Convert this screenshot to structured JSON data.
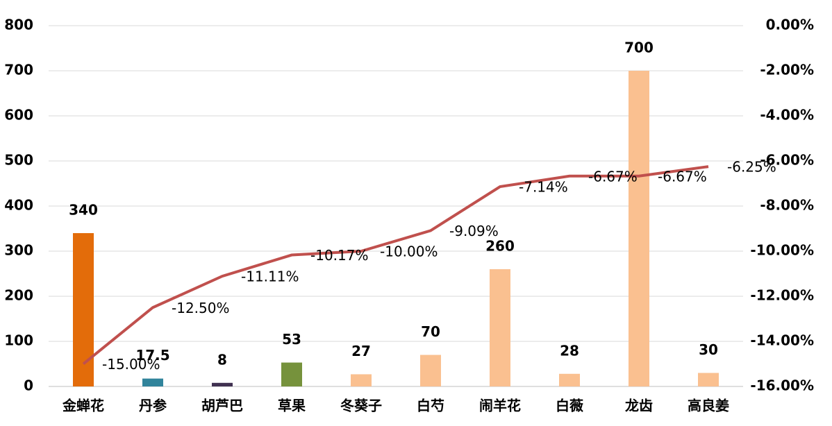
{
  "chart_data": {
    "type": "combo",
    "categories": [
      "金蝉花",
      "丹参",
      "胡芦巴",
      "草果",
      "冬葵子",
      "白芍",
      "闹羊花",
      "白薇",
      "龙齿",
      "高良姜"
    ],
    "series": [
      {
        "type": "bar",
        "colors": [
          "#e36c0a",
          "#31849b",
          "#403151",
          "#76923c",
          "#fac090",
          "#fac090",
          "#fac090",
          "#fac090",
          "#fac090",
          "#fac090"
        ],
        "values": [
          340,
          17.5,
          8,
          53,
          27,
          70,
          260,
          28,
          700,
          30
        ]
      },
      {
        "type": "line",
        "axis": "y2",
        "color": "#c0504d",
        "values": [
          -15.0,
          -12.5,
          -11.11,
          -10.17,
          -10.0,
          -9.09,
          -7.14,
          -6.67,
          -6.67,
          -6.25
        ],
        "value_labels": [
          "-15.00%",
          "-12.50%",
          "-11.11%",
          "-10.17%",
          "-10.00%",
          "-9.09%",
          "-7.14%",
          "-6.67%",
          "-6.67%",
          "-6.25%"
        ]
      }
    ],
    "ylim": [
      0,
      800
    ],
    "yticks": [
      0,
      100,
      200,
      300,
      400,
      500,
      600,
      700,
      800
    ],
    "y2lim": [
      -16,
      0
    ],
    "y2ticks": [
      {
        "value": -16,
        "label": "-16.00%"
      },
      {
        "value": -14,
        "label": "-14.00%"
      },
      {
        "value": -12,
        "label": "-12.00%"
      },
      {
        "value": -10,
        "label": "-10.00%"
      },
      {
        "value": -8,
        "label": "-8.00%"
      },
      {
        "value": -6,
        "label": "-6.00%"
      },
      {
        "value": -4,
        "label": "-4.00%"
      },
      {
        "value": -2,
        "label": "-2.00%"
      },
      {
        "value": 0,
        "label": "0.00%"
      }
    ],
    "grid": true
  }
}
